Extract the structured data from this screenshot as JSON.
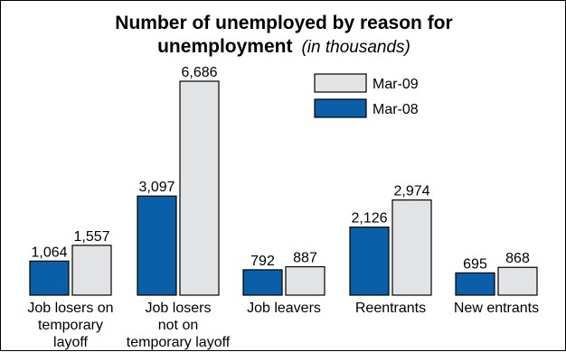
{
  "chart_data": {
    "type": "bar",
    "title": "Number of unemployed by reason for",
    "title_line2": "unemployment",
    "subtitle": "(in thousands)",
    "categories": [
      "Job losers on temporary layoff",
      "Job losers not on temporary layoff",
      "Job leavers",
      "Reentrants",
      "New entrants"
    ],
    "category_lines": [
      [
        "Job losers on",
        "temporary",
        "layoff"
      ],
      [
        "Job losers",
        "not on",
        "temporary layoff"
      ],
      [
        "Job leavers"
      ],
      [
        "Reentrants"
      ],
      [
        "New entrants"
      ]
    ],
    "series": [
      {
        "name": "Mar-08",
        "color": "#0a5fa8",
        "values": [
          1064,
          3097,
          792,
          2126,
          695
        ],
        "labels": [
          "1,064",
          "3,097",
          "792",
          "2,126",
          "695"
        ]
      },
      {
        "name": "Mar-09",
        "color": "#e2e3e5",
        "values": [
          1557,
          6686,
          887,
          2974,
          868
        ],
        "labels": [
          "1,557",
          "6,686",
          "887",
          "2,974",
          "868"
        ]
      }
    ],
    "legend": {
      "position": "top-center",
      "order": [
        "Mar-09",
        "Mar-08"
      ]
    },
    "ylim": [
      0,
      6686
    ],
    "grid": false,
    "xlabel": "",
    "ylabel": ""
  }
}
